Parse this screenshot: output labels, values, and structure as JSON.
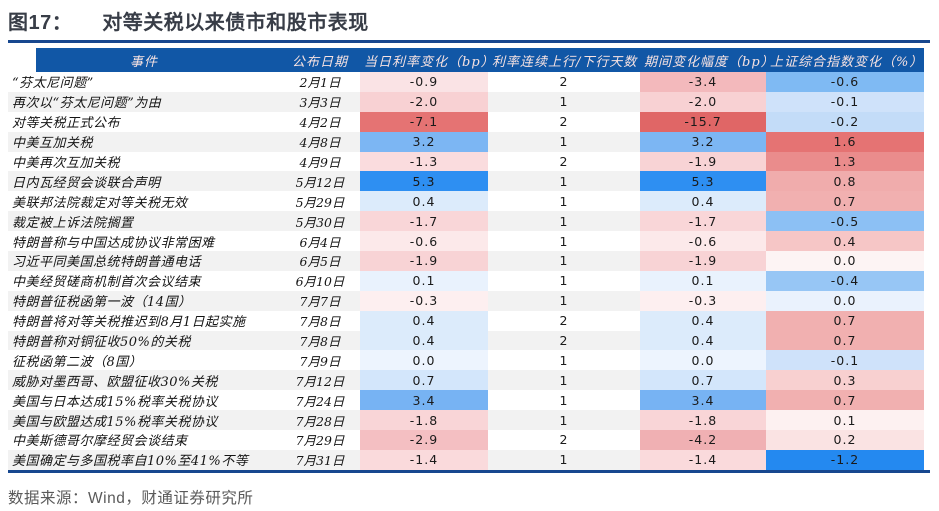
{
  "figure": {
    "label": "图17：",
    "title": "对等关税以来债市和股市表现"
  },
  "source_note": "数据来源：Wind，财通证券研究所",
  "colors": {
    "header_bg": "#1157a6",
    "header_text": "#f6e2e2",
    "rule_line": "#17478f",
    "zebra_stripe": "#f2f2f2",
    "rate_up_strong": "#2e8ff2",
    "rate_down_strong": "#e06666",
    "stock_up_strong": "#e57373",
    "stock_down_strong": "#2489f0"
  },
  "chart_data": {
    "type": "table",
    "title": "对等关税以来债市和股市表现",
    "columns": [
      "事件",
      "公布日期",
      "当日利率变化（bp）",
      "利率连续上行/下行天数",
      "期间变化幅度（bp）",
      "上证综合指数变化（%）"
    ],
    "rows": [
      {
        "event": "“芬太尼问题”",
        "date": "2月1日",
        "daily_bp": -0.9,
        "streak_days": 2,
        "period_bp": -3.4,
        "sse_pct": -0.6,
        "daily_bg": "#fae3e5",
        "period_bg": "#f3b9bc",
        "sse_bg": "#7fbaf3"
      },
      {
        "event": "再次以“芬太尼问题”为由",
        "date": "3月3日",
        "daily_bp": -2.0,
        "streak_days": 1,
        "period_bp": -2.0,
        "sse_pct": -0.1,
        "daily_bg": "#f8d1d3",
        "period_bg": "#f8d1d3",
        "sse_bg": "#cfe2fa"
      },
      {
        "event": "对等关税正式公布",
        "date": "4月2日",
        "daily_bp": -7.1,
        "streak_days": 2,
        "period_bp": -15.7,
        "sse_pct": -0.2,
        "daily_bg": "#e57373",
        "period_bg": "#e06666",
        "sse_bg": "#c3dcf8"
      },
      {
        "event": "中美互加关税",
        "date": "4月8日",
        "daily_bp": 3.2,
        "streak_days": 1,
        "period_bp": 3.2,
        "sse_pct": 1.6,
        "daily_bg": "#7cb6f3",
        "period_bg": "#7cb6f3",
        "sse_bg": "#e57373"
      },
      {
        "event": "中美再次互加关税",
        "date": "4月9日",
        "daily_bp": -1.3,
        "streak_days": 2,
        "period_bp": -1.9,
        "sse_pct": 1.3,
        "daily_bg": "#fadcde",
        "period_bg": "#f8d3d5",
        "sse_bg": "#ea8c8c"
      },
      {
        "event": "日内瓦经贸会谈联合声明",
        "date": "5月12日",
        "daily_bp": 5.3,
        "streak_days": 1,
        "period_bp": 5.3,
        "sse_pct": 0.8,
        "daily_bg": "#2e8ff2",
        "period_bg": "#2e8ff2",
        "sse_bg": "#f0acac"
      },
      {
        "event": "美联邦法院裁定对等关税无效",
        "date": "5月29日",
        "daily_bp": 0.4,
        "streak_days": 1,
        "period_bp": 0.4,
        "sse_pct": 0.7,
        "daily_bg": "#dcebfb",
        "period_bg": "#dcebfb",
        "sse_bg": "#f1b0b0"
      },
      {
        "event": "裁定被上诉法院搁置",
        "date": "5月30日",
        "daily_bp": -1.7,
        "streak_days": 1,
        "period_bp": -1.7,
        "sse_pct": -0.5,
        "daily_bg": "#f9d6d8",
        "period_bg": "#f9d6d8",
        "sse_bg": "#8cc0f4"
      },
      {
        "event": "特朗普称与中国达成协议非常困难",
        "date": "6月4日",
        "daily_bp": -0.6,
        "streak_days": 1,
        "period_bp": -0.6,
        "sse_pct": 0.4,
        "daily_bg": "#fce9ea",
        "period_bg": "#fce9ea",
        "sse_bg": "#f6c6c6"
      },
      {
        "event": "习近平同美国总统特朗普通电话",
        "date": "6月5日",
        "daily_bp": -1.9,
        "streak_days": 1,
        "period_bp": -1.9,
        "sse_pct": 0.0,
        "daily_bg": "#f8d3d5",
        "period_bg": "#f8d3d5",
        "sse_bg": "#fdf4f4"
      },
      {
        "event": "中美经贸磋商机制首次会议结束",
        "date": "6月10日",
        "daily_bp": 0.1,
        "streak_days": 1,
        "period_bp": 0.1,
        "sse_pct": -0.4,
        "daily_bg": "#e9f2fd",
        "period_bg": "#e9f2fd",
        "sse_bg": "#97c6f5"
      },
      {
        "event": "特朗普征税函第一波（14国）",
        "date": "7月7日",
        "daily_bp": -0.3,
        "streak_days": 1,
        "period_bp": -0.3,
        "sse_pct": 0.0,
        "daily_bg": "#fdeff0",
        "period_bg": "#fdeff0",
        "sse_bg": "#eaf2fd"
      },
      {
        "event": "特朗普将对等关税推迟到8月1日起实施",
        "date": "7月8日",
        "daily_bp": 0.4,
        "streak_days": 2,
        "period_bp": 0.4,
        "sse_pct": 0.7,
        "daily_bg": "#dcebfb",
        "period_bg": "#dcebfb",
        "sse_bg": "#f1b0b0"
      },
      {
        "event": "特朗普称对铜征收50%的关税",
        "date": "7月8日",
        "daily_bp": 0.4,
        "streak_days": 2,
        "period_bp": 0.4,
        "sse_pct": 0.7,
        "daily_bg": "#dcebfb",
        "period_bg": "#dcebfb",
        "sse_bg": "#f1b0b0"
      },
      {
        "event": "征税函第二波（8国）",
        "date": "7月9日",
        "daily_bp": 0.0,
        "streak_days": 1,
        "period_bp": 0.0,
        "sse_pct": -0.1,
        "daily_bg": "#edf4fe",
        "period_bg": "#edf4fe",
        "sse_bg": "#cfe2fa"
      },
      {
        "event": "威胁对墨西哥、欧盟征收30%关税",
        "date": "7月12日",
        "daily_bp": 0.7,
        "streak_days": 1,
        "period_bp": 0.7,
        "sse_pct": 0.3,
        "daily_bg": "#d3e6fb",
        "period_bg": "#d3e6fb",
        "sse_bg": "#f8d0d0"
      },
      {
        "event": "美国与日本达成15%税率关税协议",
        "date": "7月24日",
        "daily_bp": 3.4,
        "streak_days": 1,
        "period_bp": 3.4,
        "sse_pct": 0.7,
        "daily_bg": "#77b3f3",
        "period_bg": "#77b3f3",
        "sse_bg": "#f1b0b0"
      },
      {
        "event": "美国与欧盟达成15%税率关税协议",
        "date": "7月28日",
        "daily_bp": -1.8,
        "streak_days": 1,
        "period_bp": -1.8,
        "sse_pct": 0.1,
        "daily_bg": "#f9d5d7",
        "period_bg": "#f9d5d7",
        "sse_bg": "#fdf1f1"
      },
      {
        "event": "中美斯德哥尔摩经贸会谈结束",
        "date": "7月29日",
        "daily_bp": -2.9,
        "streak_days": 2,
        "period_bp": -4.2,
        "sse_pct": 0.2,
        "daily_bg": "#f4bfc2",
        "period_bg": "#f0b0b3",
        "sse_bg": "#fae3e3"
      },
      {
        "event": "美国确定与多国税率自10%至41%不等",
        "date": "7月31日",
        "daily_bp": -1.4,
        "streak_days": 1,
        "period_bp": -1.4,
        "sse_pct": -1.2,
        "daily_bg": "#fadadc",
        "period_bg": "#fadadc",
        "sse_bg": "#2489f0"
      }
    ]
  }
}
